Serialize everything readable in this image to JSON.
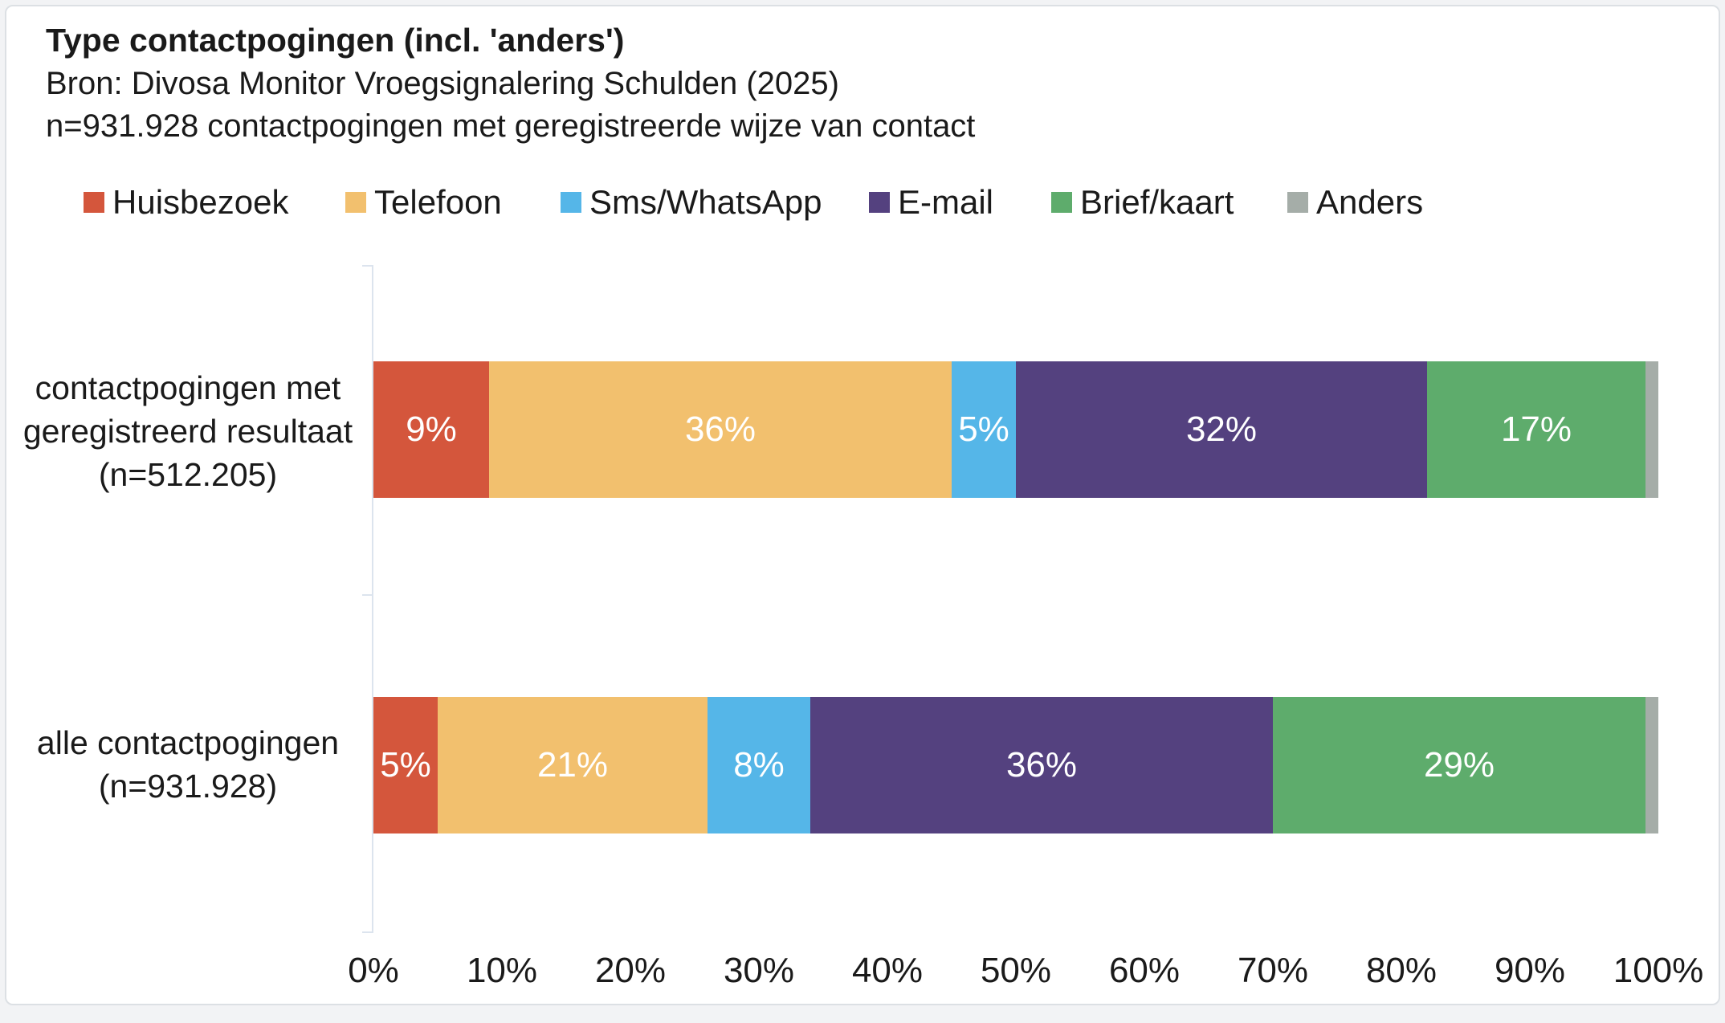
{
  "header": {
    "title": "Type contactpogingen (incl. 'anders')",
    "source": "Bron: Divosa Monitor Vroegsignalering Schulden (2025)",
    "sample": "n=931.928 contactpogingen met geregistreerde wijze van contact"
  },
  "colors": {
    "huisbezoek": "#d4563c",
    "telefoon": "#f2c06e",
    "sms_whatsapp": "#55b6e8",
    "email": "#54417f",
    "brief_kaart": "#5eac6c",
    "anders": "#a5ada8",
    "axis_line": "#dce4ee",
    "text": "#1a1a1a",
    "bar_label_text": "#ffffff"
  },
  "chart_data": {
    "type": "bar",
    "orientation": "horizontal",
    "stacked": true,
    "grid": false,
    "legend_position": "top",
    "value_suffix": "%",
    "xlim": [
      0,
      100
    ],
    "xticks": [
      "0%",
      "10%",
      "20%",
      "30%",
      "40%",
      "50%",
      "60%",
      "70%",
      "80%",
      "90%",
      "100%"
    ],
    "categories": [
      {
        "name": "contactpogingen met geregistreerd resultaat (n=512.205)",
        "label_lines": [
          "contactpogingen met",
          "geregistreerd resultaat",
          "(n=512.205)"
        ]
      },
      {
        "name": "alle contactpogingen (n=931.928)",
        "label_lines": [
          "alle contactpogingen",
          "(n=931.928)"
        ]
      }
    ],
    "series": [
      {
        "name": "Huisbezoek",
        "color": "#d4563c",
        "values": [
          9,
          5
        ],
        "show_labels": true
      },
      {
        "name": "Telefoon",
        "color": "#f2c06e",
        "values": [
          36,
          21
        ],
        "show_labels": true
      },
      {
        "name": "Sms/WhatsApp",
        "color": "#55b6e8",
        "values": [
          5,
          8
        ],
        "show_labels": true
      },
      {
        "name": "E-mail",
        "color": "#54417f",
        "values": [
          32,
          36
        ],
        "show_labels": true
      },
      {
        "name": "Brief/kaart",
        "color": "#5eac6c",
        "values": [
          17,
          29
        ],
        "show_labels": true
      },
      {
        "name": "Anders",
        "color": "#a5ada8",
        "values": [
          1,
          1
        ],
        "show_labels": false
      }
    ]
  }
}
